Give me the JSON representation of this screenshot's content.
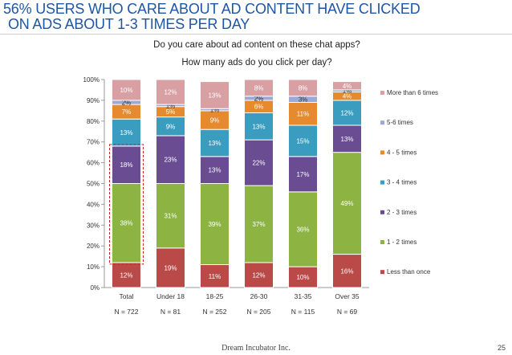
{
  "slide": {
    "title_line1": "56% USERS WHO CARE ABOUT AD CONTENT HAVE CLICKED",
    "title_line2": "ON ADS ABOUT 1-3 TIMES PER DAY",
    "footer": "Dream Incubator Inc.",
    "page_number": "25"
  },
  "chart_data": {
    "type": "bar",
    "stacked": true,
    "percent_stacked": true,
    "title_line1": "Do you care about ad content on these chat apps?",
    "title_line2": "How many ads do you click per day?",
    "categories": [
      "Total",
      "Under 18",
      "18-25",
      "26-30",
      "31-35",
      "Over 35"
    ],
    "sample_sizes": [
      "N = 722",
      "N = 81",
      "N = 252",
      "N = 205",
      "N = 115",
      "N = 69"
    ],
    "ylim": [
      0,
      100
    ],
    "yticks": [
      "0%",
      "10%",
      "20%",
      "30%",
      "40%",
      "50%",
      "60%",
      "70%",
      "80%",
      "90%",
      "100%"
    ],
    "grid": false,
    "legend_position": "right",
    "highlight": {
      "category": "Total",
      "series": [
        "1 - 2 times",
        "2 - 3 times"
      ],
      "style": "dashed-red-box"
    },
    "series": [
      {
        "name": "Less than once",
        "color": "#b94a48",
        "values": [
          12,
          19,
          11,
          12,
          10,
          16
        ],
        "labels": [
          "12%",
          "19%",
          "11%",
          "12%",
          "10%",
          "16%"
        ]
      },
      {
        "name": "1 - 2 times",
        "color": "#8db443",
        "values": [
          38,
          31,
          39,
          37,
          36,
          49
        ],
        "labels": [
          "38%",
          "31%",
          "39%",
          "37%",
          "36%",
          "49%"
        ]
      },
      {
        "name": "2 - 3 times",
        "color": "#6a4c93",
        "values": [
          18,
          23,
          13,
          22,
          17,
          13
        ],
        "labels": [
          "18%",
          "23%",
          "13%",
          "22%",
          "17%",
          "13%"
        ]
      },
      {
        "name": "3 - 4 times",
        "color": "#3a9dbf",
        "values": [
          13,
          9,
          13,
          13,
          15,
          12
        ],
        "labels": [
          "13%",
          "9%",
          "13%",
          "13%",
          "15%",
          "12%"
        ]
      },
      {
        "name": "4 - 5 times",
        "color": "#e58a2e",
        "values": [
          7,
          5,
          9,
          6,
          11,
          4
        ],
        "labels": [
          "7%",
          "5%",
          "9%",
          "6%",
          "11%",
          "4%"
        ]
      },
      {
        "name": "5-6 times",
        "color": "#9aa9d6",
        "values": [
          2,
          1,
          1,
          2,
          3,
          1
        ],
        "labels": [
          "2%",
          "1%",
          "1%",
          "2%",
          "3%",
          "1%"
        ]
      },
      {
        "name": "More than 6 times",
        "color": "#d9a0a4",
        "values": [
          10,
          12,
          13,
          8,
          8,
          4
        ],
        "labels": [
          "10%",
          "12%",
          "13%",
          "8%",
          "8%",
          "4%"
        ]
      }
    ]
  }
}
